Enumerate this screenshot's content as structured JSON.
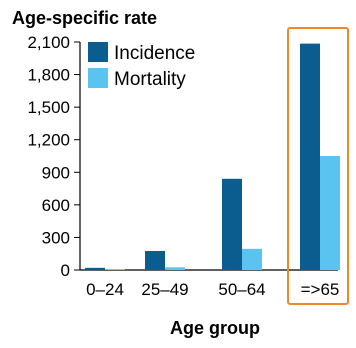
{
  "chart_data": {
    "type": "bar",
    "ylabel": "Age-specific rate",
    "xlabel": "Age group",
    "categories": [
      "0–24",
      "25–49",
      "50–64",
      "=>65"
    ],
    "series": [
      {
        "name": "Incidence",
        "color": "#0b5d8f",
        "values": [
          20,
          175,
          840,
          2085
        ]
      },
      {
        "name": "Mortality",
        "color": "#5bc3ef",
        "values": [
          5,
          25,
          195,
          1050
        ]
      }
    ],
    "y_ticks": [
      "0",
      "300",
      "600",
      "900",
      "1,200",
      "1,500",
      "1,800",
      "2,100"
    ],
    "ylim": [
      0,
      2100
    ],
    "grid": false,
    "legend_position": "top-left",
    "highlight_category": "=>65",
    "highlight_color": "#f0882a"
  }
}
